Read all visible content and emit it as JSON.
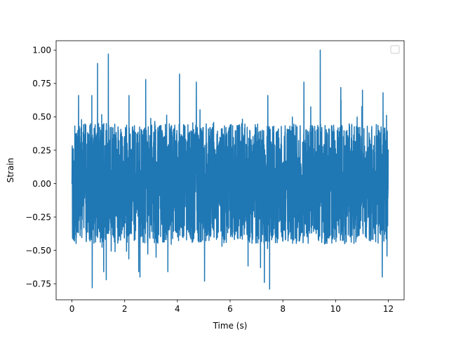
{
  "chart_data": {
    "type": "line",
    "xlabel": "Time (s)",
    "ylabel": "Strain",
    "xlim": [
      -0.6,
      12.6
    ],
    "ylim": [
      -0.87,
      1.07
    ],
    "xticks": [
      {
        "value": 0,
        "label": "0"
      },
      {
        "value": 2,
        "label": "2"
      },
      {
        "value": 4,
        "label": "4"
      },
      {
        "value": 6,
        "label": "6"
      },
      {
        "value": 8,
        "label": "8"
      },
      {
        "value": 10,
        "label": "10"
      },
      {
        "value": 12,
        "label": "12"
      }
    ],
    "yticks": [
      {
        "value": -0.75,
        "label": "−0.75"
      },
      {
        "value": -0.5,
        "label": "−0.50"
      },
      {
        "value": -0.25,
        "label": "−0.25"
      },
      {
        "value": 0.0,
        "label": "0.00"
      },
      {
        "value": 0.25,
        "label": "0.25"
      },
      {
        "value": 0.5,
        "label": "0.50"
      },
      {
        "value": 0.75,
        "label": "0.75"
      },
      {
        "value": 1.0,
        "label": "1.00"
      }
    ],
    "grid": false,
    "legend": {
      "position": "upper right",
      "entries": []
    },
    "series": [
      {
        "color": "#1f77b4",
        "x_start": 0,
        "x_end": 12,
        "typical_range": [
          -0.45,
          0.45
        ],
        "y_min": -0.79,
        "y_max": 1.0,
        "peaks": [
          {
            "x": 0.25,
            "y": 0.66
          },
          {
            "x": 0.97,
            "y": 0.9
          },
          {
            "x": 1.38,
            "y": 0.97
          },
          {
            "x": 2.8,
            "y": 0.78
          },
          {
            "x": 4.08,
            "y": 0.82
          },
          {
            "x": 4.72,
            "y": 0.76
          },
          {
            "x": 8.8,
            "y": 0.76
          },
          {
            "x": 9.42,
            "y": 1.0
          },
          {
            "x": 10.2,
            "y": 0.72
          },
          {
            "x": 11.02,
            "y": 0.7
          },
          {
            "x": 11.8,
            "y": 0.68
          }
        ],
        "troughs": [
          {
            "x": 0.77,
            "y": -0.78
          },
          {
            "x": 1.3,
            "y": -0.72
          },
          {
            "x": 2.58,
            "y": -0.7
          },
          {
            "x": 5.03,
            "y": -0.73
          },
          {
            "x": 7.3,
            "y": -0.74
          },
          {
            "x": 7.5,
            "y": -0.79
          },
          {
            "x": 11.77,
            "y": -0.7
          }
        ]
      }
    ]
  }
}
